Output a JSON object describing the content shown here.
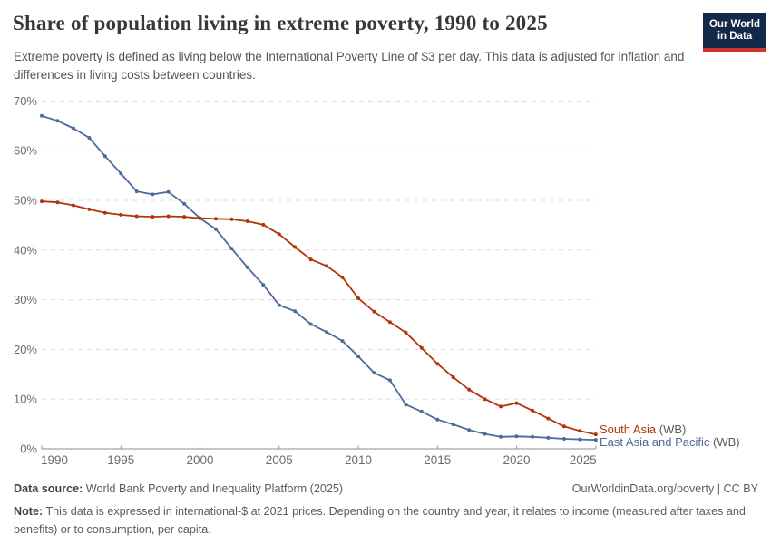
{
  "header": {
    "title": "Share of population living in extreme poverty, 1990 to 2025",
    "subtitle": "Extreme poverty is defined as living below the International Poverty Line of $3 per day. This data is adjusted for inflation and differences in living costs between countries.",
    "logo": {
      "line1": "Our World",
      "line2": "in Data",
      "bg_color": "#12294a",
      "accent_color": "#d0342c"
    }
  },
  "legend": [
    {
      "name": "South Asia",
      "suffix": " (WB)",
      "color": "#b13507"
    },
    {
      "name": "East Asia and Pacific",
      "suffix": " (WB)",
      "color": "#4c6a9c"
    }
  ],
  "footer": {
    "data_source_label": "Data source:",
    "data_source": " World Bank Poverty and Inequality Platform (2025)",
    "attribution": "OurWorldinData.org/poverty | CC BY",
    "note_label": "Note:",
    "note": " This data is expressed in international-$ at 2021 prices. Depending on the country and year, it relates to income (measured after taxes and benefits) or to consumption, per capita."
  },
  "chart_data": {
    "type": "line",
    "title": "Share of population living in extreme poverty, 1990 to 2025",
    "xlabel": "",
    "ylabel": "",
    "xlim": [
      1990,
      2025
    ],
    "ylim": [
      0,
      70
    ],
    "xticks": [
      1990,
      1995,
      2000,
      2005,
      2010,
      2015,
      2020,
      2025
    ],
    "yticks": [
      0,
      10,
      20,
      30,
      40,
      50,
      60,
      70
    ],
    "ytick_suffix": "%",
    "grid": "horizontal-dashed",
    "legend_position": "right-of-line-ends",
    "x": [
      1990,
      1991,
      1992,
      1993,
      1994,
      1995,
      1996,
      1997,
      1998,
      1999,
      2000,
      2001,
      2002,
      2003,
      2004,
      2005,
      2006,
      2007,
      2008,
      2009,
      2010,
      2011,
      2012,
      2013,
      2014,
      2015,
      2016,
      2017,
      2018,
      2019,
      2020,
      2021,
      2022,
      2023,
      2024,
      2025
    ],
    "series": [
      {
        "name": "East Asia and Pacific (WB)",
        "color": "#4c6a9c",
        "values": [
          67.0,
          66.0,
          64.5,
          62.6,
          58.9,
          55.4,
          51.8,
          51.2,
          51.7,
          49.3,
          46.4,
          44.2,
          40.3,
          36.5,
          33.0,
          28.9,
          27.7,
          25.1,
          23.5,
          21.7,
          18.6,
          15.3,
          13.8,
          8.9,
          7.5,
          5.9,
          4.9,
          3.8,
          3.0,
          2.4,
          2.5,
          2.4,
          2.2,
          2.0,
          1.9,
          1.8
        ]
      },
      {
        "name": "South Asia (WB)",
        "color": "#b13507",
        "values": [
          49.8,
          49.6,
          49.0,
          48.2,
          47.5,
          47.1,
          46.8,
          46.7,
          46.8,
          46.7,
          46.4,
          46.3,
          46.2,
          45.8,
          45.1,
          43.2,
          40.6,
          38.1,
          36.8,
          34.5,
          30.3,
          27.6,
          25.5,
          23.4,
          20.3,
          17.1,
          14.4,
          11.9,
          10.0,
          8.5,
          9.2,
          7.7,
          6.1,
          4.5,
          3.6,
          2.9
        ]
      }
    ]
  }
}
